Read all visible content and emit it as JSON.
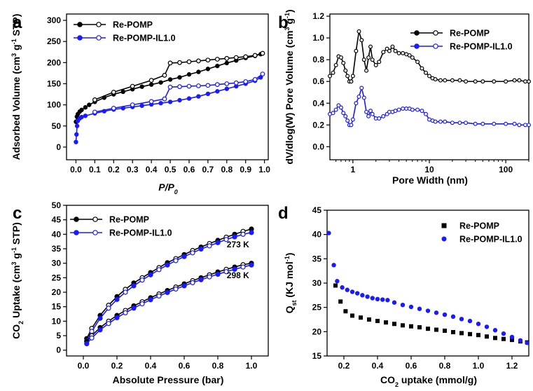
{
  "colors": {
    "black_series": "#000000",
    "blue_series": "#1a1aff",
    "axis": "#000000"
  },
  "chart_data": [
    {
      "id": "a",
      "type": "line",
      "panel_label": "a",
      "title": "",
      "xlabel_italic_parts": [
        "P",
        "/",
        "P",
        "0"
      ],
      "ylabel_parts": [
        "Adsorbed Volume (cm",
        "3",
        " g",
        "-1",
        " STP)"
      ],
      "xlim": [
        -0.05,
        1.02
      ],
      "ylim": [
        -30,
        315
      ],
      "xticks": [
        0.0,
        0.1,
        0.2,
        0.3,
        0.4,
        0.5,
        0.6,
        0.7,
        0.8,
        0.9,
        1.0
      ],
      "xtick_labels": [
        "0.0",
        "0.1",
        "0.2",
        "0.3",
        "0.4",
        "0.5",
        "0.6",
        "0.7",
        "0.8",
        "0.9",
        "1.0"
      ],
      "yticks": [
        0,
        50,
        100,
        150,
        200,
        250,
        300
      ],
      "ytick_labels": [
        "0",
        "50",
        "100",
        "150",
        "200",
        "250",
        "300"
      ],
      "legend": [
        "Re-POMP",
        "Re-POMP-IL1.0"
      ],
      "series": [
        {
          "name": "Re-POMP",
          "color": "black",
          "adsorption": {
            "x": [
              0.0,
              0.005,
              0.01,
              0.02,
              0.03,
              0.05,
              0.07,
              0.1,
              0.15,
              0.2,
              0.25,
              0.3,
              0.35,
              0.4,
              0.45,
              0.5,
              0.55,
              0.6,
              0.65,
              0.7,
              0.75,
              0.8,
              0.85,
              0.9,
              0.95,
              0.98,
              0.99
            ],
            "y": [
              60,
              72,
              78,
              84,
              88,
              94,
              100,
              107,
              117,
              125,
              131,
              137,
              143,
              148,
              153,
              160,
              165,
              172,
              178,
              185,
              192,
              199,
              205,
              211,
              216,
              220,
              222
            ]
          },
          "desorption": {
            "x": [
              0.99,
              0.95,
              0.9,
              0.85,
              0.8,
              0.75,
              0.7,
              0.65,
              0.6,
              0.55,
              0.5,
              0.47,
              0.4,
              0.3,
              0.2,
              0.1
            ],
            "y": [
              222,
              217,
              214,
              212,
              210,
              208,
              206,
              204,
              202,
              200,
              199,
              170,
              158,
              144,
              130,
              112
            ]
          }
        },
        {
          "name": "Re-POMP-IL1.0",
          "color": "blue",
          "adsorption": {
            "x": [
              0.0,
              0.003,
              0.006,
              0.01,
              0.02,
              0.03,
              0.05,
              0.1,
              0.15,
              0.2,
              0.25,
              0.3,
              0.35,
              0.4,
              0.45,
              0.5,
              0.55,
              0.6,
              0.65,
              0.7,
              0.75,
              0.8,
              0.85,
              0.9,
              0.95,
              0.98,
              0.99
            ],
            "y": [
              12,
              30,
              50,
              62,
              68,
              71,
              74,
              80,
              85,
              89,
              92,
              95,
              98,
              101,
              104,
              107,
              111,
              115,
              120,
              126,
              132,
              138,
              144,
              150,
              157,
              165,
              173
            ]
          },
          "desorption": {
            "x": [
              0.99,
              0.95,
              0.9,
              0.85,
              0.8,
              0.75,
              0.7,
              0.65,
              0.6,
              0.55,
              0.5,
              0.47,
              0.4,
              0.3,
              0.2,
              0.1
            ],
            "y": [
              173,
              160,
              155,
              152,
              150,
              148,
              146,
              145,
              144,
              143,
              142,
              114,
              108,
              100,
              92,
              83
            ]
          }
        }
      ]
    },
    {
      "id": "b",
      "type": "line",
      "panel_label": "b",
      "xlabel": "Pore Width (nm)",
      "ylabel_parts": [
        "dV/dlog(W) Pore Volume (cm",
        "3",
        " g",
        "-1",
        ")"
      ],
      "xscale": "log",
      "xlim": [
        0.5,
        200
      ],
      "ylim": [
        -0.12,
        1.22
      ],
      "xticks": [
        1,
        10,
        100
      ],
      "xtick_labels": [
        "1",
        "10",
        "100"
      ],
      "yticks": [
        0.0,
        0.2,
        0.4,
        0.6,
        0.8,
        1.0,
        1.2
      ],
      "ytick_labels": [
        "0.0",
        "0.2",
        "0.4",
        "0.6",
        "0.8",
        "1.0",
        "1.2"
      ],
      "legend": [
        "Re-POMP",
        "Re-POMP-IL1.0"
      ],
      "series": [
        {
          "name": "Re-POMP",
          "color": "black",
          "x": [
            0.5,
            0.55,
            0.6,
            0.65,
            0.7,
            0.75,
            0.8,
            0.85,
            0.9,
            0.95,
            1.0,
            1.1,
            1.2,
            1.3,
            1.4,
            1.5,
            1.6,
            1.7,
            1.8,
            2.0,
            2.2,
            2.5,
            2.8,
            3.0,
            3.3,
            3.6,
            4.0,
            4.5,
            5.0,
            5.5,
            6.0,
            7.0,
            8.0,
            9.0,
            10,
            11,
            12,
            14,
            16,
            20,
            25,
            30,
            40,
            50,
            70,
            100,
            130,
            150,
            180,
            200
          ],
          "y": [
            0.65,
            0.68,
            0.75,
            0.83,
            0.82,
            0.77,
            0.7,
            0.65,
            0.6,
            0.6,
            0.65,
            0.88,
            1.06,
            0.98,
            0.8,
            0.7,
            0.82,
            0.92,
            0.8,
            0.75,
            0.78,
            0.87,
            0.9,
            0.88,
            0.92,
            0.88,
            0.86,
            0.86,
            0.85,
            0.84,
            0.82,
            0.78,
            0.72,
            0.68,
            0.65,
            0.63,
            0.62,
            0.61,
            0.61,
            0.61,
            0.61,
            0.6,
            0.6,
            0.6,
            0.6,
            0.6,
            0.61,
            0.61,
            0.6,
            0.6
          ]
        },
        {
          "name": "Re-POMP-IL1.0",
          "color": "blue",
          "x": [
            0.5,
            0.55,
            0.6,
            0.65,
            0.7,
            0.75,
            0.8,
            0.85,
            0.9,
            0.95,
            1.0,
            1.1,
            1.2,
            1.3,
            1.4,
            1.5,
            1.6,
            1.7,
            1.8,
            2.0,
            2.2,
            2.5,
            2.8,
            3.0,
            3.3,
            3.6,
            4.0,
            4.5,
            5.0,
            5.5,
            6.0,
            7.0,
            8.0,
            9.0,
            10,
            11,
            12,
            14,
            16,
            20,
            25,
            30,
            40,
            50,
            70,
            100,
            130,
            150,
            180,
            200
          ],
          "y": [
            0.3,
            0.31,
            0.34,
            0.38,
            0.36,
            0.31,
            0.28,
            0.24,
            0.2,
            0.2,
            0.25,
            0.4,
            0.46,
            0.54,
            0.45,
            0.32,
            0.28,
            0.33,
            0.3,
            0.26,
            0.26,
            0.28,
            0.3,
            0.32,
            0.32,
            0.33,
            0.34,
            0.35,
            0.35,
            0.35,
            0.34,
            0.34,
            0.33,
            0.3,
            0.25,
            0.24,
            0.23,
            0.23,
            0.23,
            0.22,
            0.22,
            0.22,
            0.21,
            0.21,
            0.21,
            0.21,
            0.21,
            0.2,
            0.2,
            0.2
          ]
        }
      ]
    },
    {
      "id": "c",
      "type": "line",
      "panel_label": "c",
      "xlabel": "Absolute Pressure (bar)",
      "ylabel_parts": [
        "CO",
        "2",
        " Uptake (cm",
        "3",
        " g",
        "-1",
        " STP)"
      ],
      "xlim": [
        -0.1,
        1.1
      ],
      "ylim": [
        -2,
        50
      ],
      "xticks": [
        0.0,
        0.2,
        0.4,
        0.6,
        0.8,
        1.0
      ],
      "xtick_labels": [
        "0.0",
        "0.2",
        "0.4",
        "0.6",
        "0.8",
        "1.0"
      ],
      "yticks": [
        0,
        5,
        10,
        15,
        20,
        25,
        30,
        35,
        40,
        45,
        50
      ],
      "ytick_labels": [
        "0",
        "5",
        "10",
        "15",
        "20",
        "25",
        "30",
        "35",
        "40",
        "45",
        "50"
      ],
      "legend": [
        "Re-POMP",
        "Re-POMP-IL1.0"
      ],
      "annotations": [
        "273 K",
        "298 K"
      ],
      "series": [
        {
          "name": "Re-POMP",
          "temp": "273 K",
          "color": "black",
          "x": [
            0.02,
            0.05,
            0.1,
            0.15,
            0.2,
            0.25,
            0.3,
            0.35,
            0.4,
            0.45,
            0.5,
            0.55,
            0.6,
            0.65,
            0.7,
            0.75,
            0.8,
            0.85,
            0.9,
            0.95,
            1.0
          ],
          "y": [
            4.0,
            7.5,
            12.0,
            15.5,
            18.5,
            21.0,
            23.2,
            25.0,
            26.8,
            28.5,
            30.2,
            31.6,
            33.0,
            34.4,
            35.6,
            36.8,
            37.9,
            39.0,
            40.0,
            41.0,
            41.8
          ]
        },
        {
          "name": "Re-POMP-IL1.0",
          "temp": "273 K",
          "color": "blue",
          "x": [
            0.02,
            0.05,
            0.1,
            0.15,
            0.2,
            0.25,
            0.3,
            0.35,
            0.4,
            0.45,
            0.5,
            0.55,
            0.6,
            0.65,
            0.7,
            0.75,
            0.8,
            0.85,
            0.9,
            0.95,
            1.0
          ],
          "y": [
            3.2,
            6.5,
            11.0,
            14.5,
            17.5,
            20.0,
            22.2,
            24.2,
            26.0,
            27.8,
            29.4,
            30.9,
            32.3,
            33.6,
            34.9,
            36.0,
            37.1,
            38.2,
            39.1,
            40.0,
            40.6
          ]
        },
        {
          "name": "Re-POMP",
          "temp": "298 K",
          "color": "black",
          "x": [
            0.02,
            0.05,
            0.1,
            0.15,
            0.2,
            0.25,
            0.3,
            0.35,
            0.4,
            0.45,
            0.5,
            0.55,
            0.6,
            0.65,
            0.7,
            0.75,
            0.8,
            0.85,
            0.9,
            0.95,
            1.0
          ],
          "y": [
            3.0,
            5.0,
            7.8,
            10.0,
            12.0,
            13.7,
            15.3,
            16.7,
            18.1,
            19.4,
            20.6,
            21.8,
            22.9,
            24.0,
            25.0,
            26.0,
            27.0,
            27.9,
            28.7,
            29.5,
            30.0
          ]
        },
        {
          "name": "Re-POMP-IL1.0",
          "temp": "298 K",
          "color": "blue",
          "x": [
            0.02,
            0.05,
            0.1,
            0.15,
            0.2,
            0.25,
            0.3,
            0.35,
            0.4,
            0.45,
            0.5,
            0.55,
            0.6,
            0.65,
            0.7,
            0.75,
            0.8,
            0.85,
            0.9,
            0.95,
            1.0
          ],
          "y": [
            2.2,
            4.2,
            7.0,
            9.2,
            11.2,
            12.9,
            14.5,
            16.0,
            17.4,
            18.7,
            19.9,
            21.1,
            22.2,
            23.3,
            24.3,
            25.3,
            26.2,
            27.1,
            27.9,
            28.7,
            29.4
          ]
        }
      ]
    },
    {
      "id": "d",
      "type": "scatter",
      "panel_label": "d",
      "xlabel_parts": [
        "CO",
        "2",
        " uptake (mmol/g)"
      ],
      "ylabel_parts": [
        "Q",
        "st",
        " (KJ mol",
        "-1",
        ")"
      ],
      "xlim": [
        0.1,
        1.3
      ],
      "ylim": [
        15,
        45
      ],
      "xticks": [
        0.2,
        0.4,
        0.6,
        0.8,
        1.0,
        1.2
      ],
      "xtick_labels": [
        "0.2",
        "0.4",
        "0.6",
        "0.8",
        "1.0",
        "1.2"
      ],
      "yticks": [
        15,
        20,
        25,
        30,
        35,
        40,
        45
      ],
      "ytick_labels": [
        "15",
        "20",
        "25",
        "30",
        "35",
        "40",
        "45"
      ],
      "legend": [
        "Re-POMP",
        "Re-POMP-IL1.0"
      ],
      "series": [
        {
          "name": "Re-POMP",
          "color": "black",
          "marker": "square",
          "x": [
            0.15,
            0.18,
            0.21,
            0.25,
            0.3,
            0.35,
            0.4,
            0.45,
            0.5,
            0.55,
            0.6,
            0.65,
            0.7,
            0.75,
            0.8,
            0.85,
            0.9,
            0.95,
            1.0,
            1.05,
            1.1,
            1.15,
            1.2,
            1.25,
            1.29
          ],
          "y": [
            29.5,
            26.2,
            24.2,
            23.3,
            22.9,
            22.5,
            22.2,
            21.9,
            21.6,
            21.3,
            21.1,
            20.9,
            20.6,
            20.4,
            20.2,
            19.9,
            19.7,
            19.5,
            19.3,
            19.0,
            18.7,
            18.5,
            18.3,
            18.0,
            17.8
          ]
        },
        {
          "name": "Re-POMP-IL1.0",
          "color": "blue",
          "marker": "circle",
          "x": [
            0.11,
            0.14,
            0.16,
            0.19,
            0.22,
            0.25,
            0.28,
            0.31,
            0.34,
            0.37,
            0.4,
            0.43,
            0.46,
            0.5,
            0.55,
            0.6,
            0.65,
            0.7,
            0.75,
            0.8,
            0.85,
            0.9,
            0.95,
            1.0,
            1.05,
            1.1,
            1.15,
            1.2,
            1.25,
            1.29
          ],
          "y": [
            40.3,
            33.7,
            30.4,
            29.1,
            28.6,
            28.2,
            27.9,
            27.5,
            27.2,
            26.9,
            26.7,
            26.6,
            26.5,
            26.0,
            25.5,
            25.1,
            24.7,
            24.3,
            23.9,
            23.5,
            23.1,
            22.6,
            22.2,
            21.6,
            21.0,
            20.3,
            19.6,
            18.9,
            18.2,
            17.7
          ]
        }
      ]
    }
  ]
}
